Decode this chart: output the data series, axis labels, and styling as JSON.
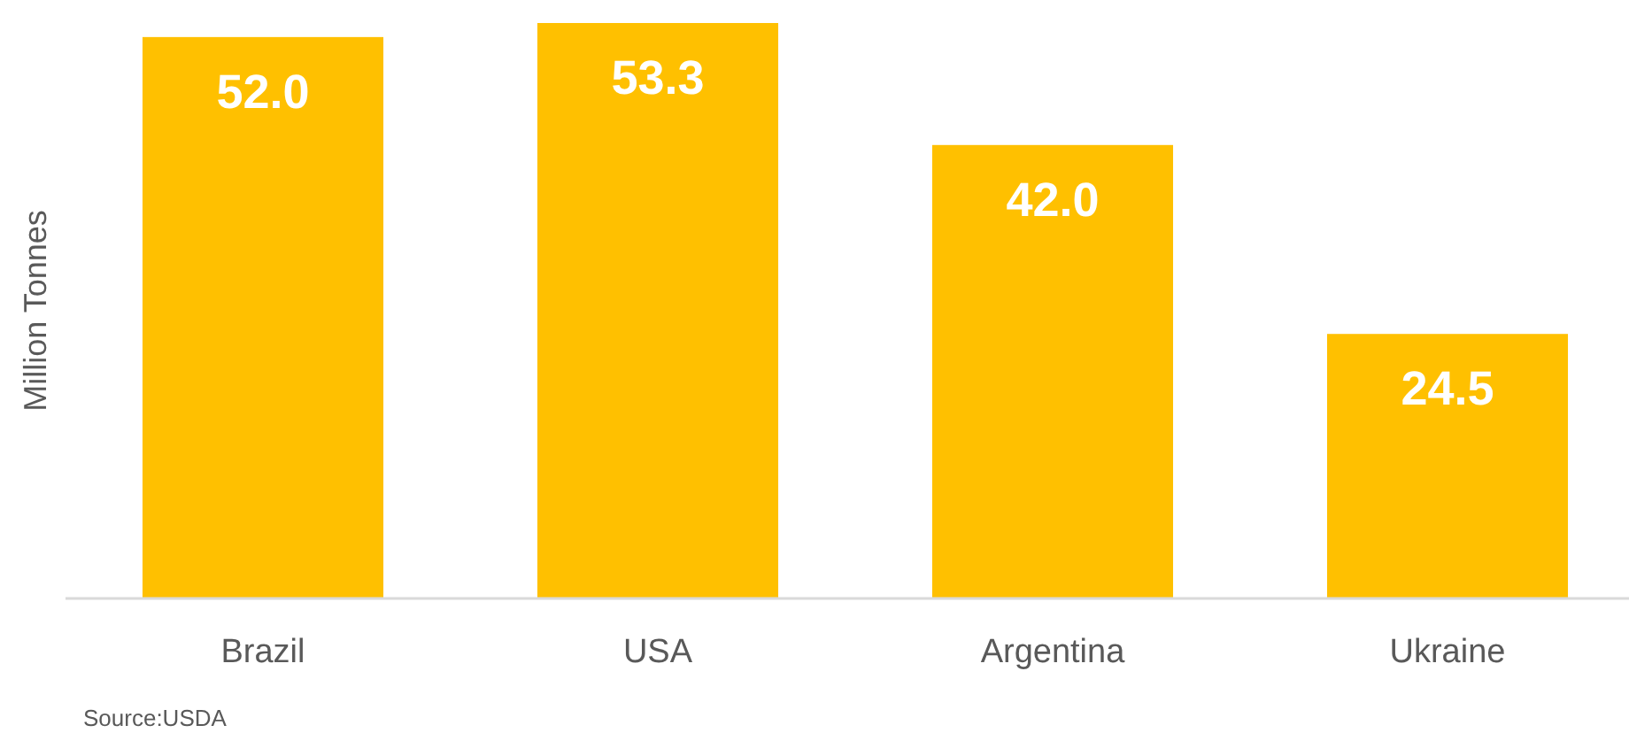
{
  "chart_data": {
    "type": "bar",
    "ylabel": "Million Tonnes",
    "categories": [
      "Brazil",
      "USA",
      "Argentina",
      "Ukraine"
    ],
    "values": [
      52.0,
      53.3,
      42.0,
      24.5
    ],
    "value_labels": [
      "52.0",
      "53.3",
      "42.0",
      "24.5"
    ],
    "color": "#ffc000",
    "annotations": [
      "Source:USDA"
    ]
  }
}
